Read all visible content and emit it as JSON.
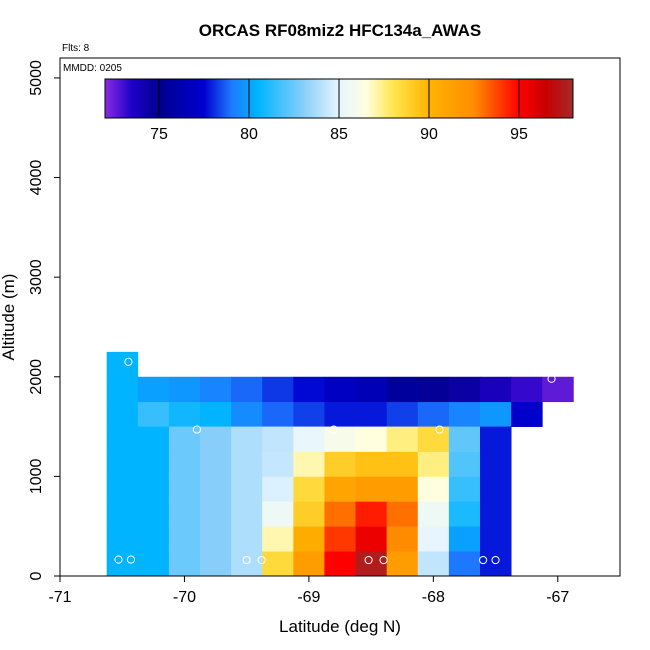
{
  "chart_data": {
    "type": "heatmap",
    "title": "ORCAS RF08miz2 HFC134a_AWAS",
    "annotations": {
      "flights": "Flts: 8",
      "date": "MMDD: 0205"
    },
    "xlabel": "Latitude (deg N)",
    "ylabel": "Altitude (m)",
    "xlim": [
      -71,
      -66.5
    ],
    "ylim": [
      0,
      5200
    ],
    "x_ticks": [
      -71,
      -70,
      -69,
      -68,
      -67
    ],
    "x_tick_labels": [
      "-71",
      "-70",
      "-69",
      "-68",
      "-67"
    ],
    "y_ticks": [
      0,
      1000,
      2000,
      3000,
      4000,
      5000
    ],
    "y_tick_labels": [
      "0",
      "1000",
      "2000",
      "3000",
      "4000",
      "5000"
    ],
    "colorbar": {
      "range": [
        72,
        98
      ],
      "ticks": [
        75,
        80,
        85,
        90,
        95
      ],
      "tick_labels": [
        "75",
        "80",
        "85",
        "90",
        "95"
      ],
      "stops": [
        {
          "v": 72,
          "c": "#8a2be2"
        },
        {
          "v": 73.5,
          "c": "#1e00c8"
        },
        {
          "v": 75,
          "c": "#000090"
        },
        {
          "v": 77.5,
          "c": "#0000d0"
        },
        {
          "v": 79,
          "c": "#1e78ff"
        },
        {
          "v": 80.5,
          "c": "#00b4ff"
        },
        {
          "v": 83,
          "c": "#87cefa"
        },
        {
          "v": 85,
          "c": "#e6f5ff"
        },
        {
          "v": 86.5,
          "c": "#ffffe0"
        },
        {
          "v": 88,
          "c": "#ffe650"
        },
        {
          "v": 90,
          "c": "#ffb400"
        },
        {
          "v": 92.5,
          "c": "#ff8c00"
        },
        {
          "v": 95,
          "c": "#ff0000"
        },
        {
          "v": 96.5,
          "c": "#c80000"
        },
        {
          "v": 98,
          "c": "#a52a2a"
        }
      ]
    },
    "cell_width_deg": 0.25,
    "cell_height_m": 250,
    "cells": [
      {
        "lon": -70.5,
        "alt": 0,
        "v": 80.5
      },
      {
        "lon": -70.5,
        "alt": 250,
        "v": 80.5
      },
      {
        "lon": -70.5,
        "alt": 500,
        "v": 80.5
      },
      {
        "lon": -70.5,
        "alt": 750,
        "v": 80.5
      },
      {
        "lon": -70.5,
        "alt": 1000,
        "v": 80.5
      },
      {
        "lon": -70.5,
        "alt": 1250,
        "v": 80.5
      },
      {
        "lon": -70.5,
        "alt": 1500,
        "v": 80.5
      },
      {
        "lon": -70.5,
        "alt": 1750,
        "v": 80.5
      },
      {
        "lon": -70.5,
        "alt": 2000,
        "v": 80.5
      },
      {
        "lon": -70.25,
        "alt": 1500,
        "v": 81.5
      },
      {
        "lon": -70.25,
        "alt": 1750,
        "v": 80.0
      },
      {
        "lon": -70.0,
        "alt": 1500,
        "v": 80.8
      },
      {
        "lon": -70.0,
        "alt": 1750,
        "v": 79.8
      },
      {
        "lon": -69.75,
        "alt": 1500,
        "v": 80.5
      },
      {
        "lon": -69.75,
        "alt": 1750,
        "v": 79.3
      },
      {
        "lon": -69.5,
        "alt": 1500,
        "v": 79.5
      },
      {
        "lon": -69.5,
        "alt": 1750,
        "v": 78.8
      },
      {
        "lon": -69.25,
        "alt": 1500,
        "v": 78.8
      },
      {
        "lon": -69.25,
        "alt": 1750,
        "v": 78.2
      },
      {
        "lon": -69.0,
        "alt": 1500,
        "v": 78.3
      },
      {
        "lon": -69.0,
        "alt": 1750,
        "v": 77.6
      },
      {
        "lon": -68.75,
        "alt": 1500,
        "v": 77.8
      },
      {
        "lon": -68.75,
        "alt": 1750,
        "v": 77.0
      },
      {
        "lon": -68.5,
        "alt": 1500,
        "v": 77.8
      },
      {
        "lon": -68.5,
        "alt": 1750,
        "v": 76.5
      },
      {
        "lon": -68.25,
        "alt": 1500,
        "v": 78.3
      },
      {
        "lon": -68.25,
        "alt": 1750,
        "v": 75.5
      },
      {
        "lon": -68.0,
        "alt": 1500,
        "v": 78.8
      },
      {
        "lon": -68.0,
        "alt": 1750,
        "v": 74.8
      },
      {
        "lon": -67.75,
        "alt": 1500,
        "v": 79.3
      },
      {
        "lon": -67.75,
        "alt": 1750,
        "v": 74.5
      },
      {
        "lon": -67.5,
        "alt": 1500,
        "v": 79.8
      },
      {
        "lon": -67.5,
        "alt": 1750,
        "v": 73.8
      },
      {
        "lon": -67.25,
        "alt": 1500,
        "v": 77.3
      },
      {
        "lon": -67.25,
        "alt": 1750,
        "v": 73.2
      },
      {
        "lon": -67.0,
        "alt": 1750,
        "v": 72.6
      },
      {
        "lon": -70.25,
        "alt": 0,
        "v": 80.5
      },
      {
        "lon": -70.25,
        "alt": 250,
        "v": 80.5
      },
      {
        "lon": -70.25,
        "alt": 500,
        "v": 80.5
      },
      {
        "lon": -70.25,
        "alt": 750,
        "v": 80.5
      },
      {
        "lon": -70.25,
        "alt": 1000,
        "v": 80.5
      },
      {
        "lon": -70.25,
        "alt": 1250,
        "v": 80.5
      },
      {
        "lon": -70.0,
        "alt": 0,
        "v": 82.5
      },
      {
        "lon": -70.0,
        "alt": 250,
        "v": 82.5
      },
      {
        "lon": -70.0,
        "alt": 500,
        "v": 82.5
      },
      {
        "lon": -70.0,
        "alt": 750,
        "v": 82.5
      },
      {
        "lon": -70.0,
        "alt": 1000,
        "v": 82.5
      },
      {
        "lon": -70.0,
        "alt": 1250,
        "v": 82.5
      },
      {
        "lon": -69.75,
        "alt": 0,
        "v": 83.0
      },
      {
        "lon": -69.75,
        "alt": 250,
        "v": 83.0
      },
      {
        "lon": -69.75,
        "alt": 500,
        "v": 83.0
      },
      {
        "lon": -69.75,
        "alt": 750,
        "v": 83.0
      },
      {
        "lon": -69.75,
        "alt": 1000,
        "v": 83.0
      },
      {
        "lon": -69.75,
        "alt": 1250,
        "v": 83.0
      },
      {
        "lon": -69.5,
        "alt": 0,
        "v": 83.8
      },
      {
        "lon": -69.5,
        "alt": 250,
        "v": 83.8
      },
      {
        "lon": -69.5,
        "alt": 500,
        "v": 83.8
      },
      {
        "lon": -69.5,
        "alt": 750,
        "v": 83.8
      },
      {
        "lon": -69.5,
        "alt": 1000,
        "v": 83.8
      },
      {
        "lon": -69.5,
        "alt": 1250,
        "v": 83.8
      },
      {
        "lon": -69.25,
        "alt": 0,
        "v": 88.5
      },
      {
        "lon": -69.25,
        "alt": 250,
        "v": 87.0
      },
      {
        "lon": -69.25,
        "alt": 500,
        "v": 85.5
      },
      {
        "lon": -69.25,
        "alt": 750,
        "v": 84.8
      },
      {
        "lon": -69.25,
        "alt": 1000,
        "v": 84.3
      },
      {
        "lon": -69.25,
        "alt": 1250,
        "v": 84.2
      },
      {
        "lon": -69.0,
        "alt": 0,
        "v": 91.5
      },
      {
        "lon": -69.0,
        "alt": 250,
        "v": 90.5
      },
      {
        "lon": -69.0,
        "alt": 500,
        "v": 89.0
      },
      {
        "lon": -69.0,
        "alt": 750,
        "v": 88.5
      },
      {
        "lon": -69.0,
        "alt": 1000,
        "v": 87.0
      },
      {
        "lon": -69.0,
        "alt": 1250,
        "v": 85.2
      },
      {
        "lon": -68.75,
        "alt": 0,
        "v": 95.0
      },
      {
        "lon": -68.75,
        "alt": 250,
        "v": 94.0
      },
      {
        "lon": -68.75,
        "alt": 500,
        "v": 93.0
      },
      {
        "lon": -68.75,
        "alt": 750,
        "v": 91.0
      },
      {
        "lon": -68.75,
        "alt": 1000,
        "v": 89.0
      },
      {
        "lon": -68.75,
        "alt": 1250,
        "v": 86.0
      },
      {
        "lon": -68.5,
        "alt": 0,
        "v": 97.5
      },
      {
        "lon": -68.5,
        "alt": 250,
        "v": 95.5
      },
      {
        "lon": -68.5,
        "alt": 500,
        "v": 94.5
      },
      {
        "lon": -68.5,
        "alt": 750,
        "v": 91.5
      },
      {
        "lon": -68.5,
        "alt": 1000,
        "v": 89.5
      },
      {
        "lon": -68.5,
        "alt": 1250,
        "v": 86.5
      },
      {
        "lon": -68.25,
        "alt": 0,
        "v": 91.5
      },
      {
        "lon": -68.25,
        "alt": 250,
        "v": 92.5
      },
      {
        "lon": -68.25,
        "alt": 500,
        "v": 93.0
      },
      {
        "lon": -68.25,
        "alt": 750,
        "v": 91.5
      },
      {
        "lon": -68.25,
        "alt": 1000,
        "v": 89.5
      },
      {
        "lon": -68.25,
        "alt": 1250,
        "v": 87.5
      },
      {
        "lon": -68.0,
        "alt": 0,
        "v": 84.2
      },
      {
        "lon": -68.0,
        "alt": 250,
        "v": 85.0
      },
      {
        "lon": -68.0,
        "alt": 500,
        "v": 85.5
      },
      {
        "lon": -68.0,
        "alt": 750,
        "v": 86.5
      },
      {
        "lon": -68.0,
        "alt": 1000,
        "v": 87.5
      },
      {
        "lon": -68.0,
        "alt": 1250,
        "v": 88.5
      },
      {
        "lon": -67.75,
        "alt": 0,
        "v": 79.0
      },
      {
        "lon": -67.75,
        "alt": 250,
        "v": 80.0
      },
      {
        "lon": -67.75,
        "alt": 500,
        "v": 81.0
      },
      {
        "lon": -67.75,
        "alt": 750,
        "v": 81.5
      },
      {
        "lon": -67.75,
        "alt": 1000,
        "v": 82.0
      },
      {
        "lon": -67.75,
        "alt": 1250,
        "v": 82.3
      },
      {
        "lon": -67.5,
        "alt": 0,
        "v": 77.8
      },
      {
        "lon": -67.5,
        "alt": 250,
        "v": 77.8
      },
      {
        "lon": -67.5,
        "alt": 500,
        "v": 77.8
      },
      {
        "lon": -67.5,
        "alt": 750,
        "v": 77.8
      },
      {
        "lon": -67.5,
        "alt": 1000,
        "v": 77.8
      },
      {
        "lon": -67.5,
        "alt": 1250,
        "v": 77.8
      }
    ],
    "sample_points": [
      {
        "lon": -70.45,
        "alt": 2150
      },
      {
        "lon": -69.9,
        "alt": 1470
      },
      {
        "lon": -68.8,
        "alt": 1470
      },
      {
        "lon": -67.95,
        "alt": 1470
      },
      {
        "lon": -67.05,
        "alt": 1980
      },
      {
        "lon": -70.53,
        "alt": 165
      },
      {
        "lon": -70.43,
        "alt": 165
      },
      {
        "lon": -69.5,
        "alt": 160
      },
      {
        "lon": -69.38,
        "alt": 160
      },
      {
        "lon": -68.52,
        "alt": 160
      },
      {
        "lon": -68.4,
        "alt": 160
      },
      {
        "lon": -67.6,
        "alt": 160
      },
      {
        "lon": -67.5,
        "alt": 160
      }
    ]
  }
}
